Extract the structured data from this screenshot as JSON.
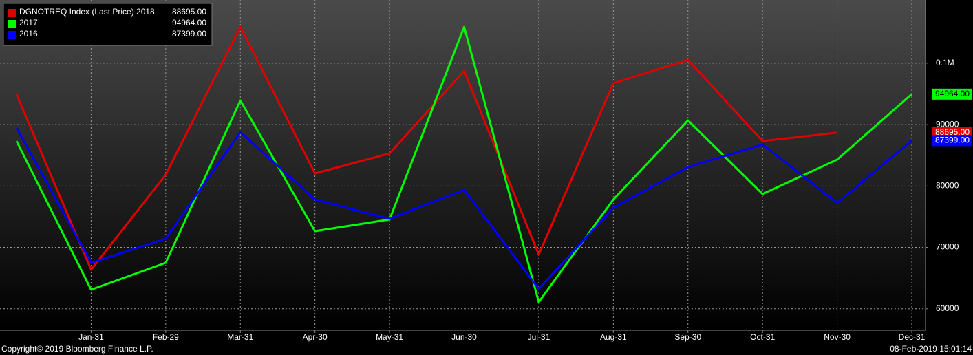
{
  "chart_data": {
    "type": "line",
    "categories": [
      null,
      "Jan-31",
      "Feb-29",
      "Mar-31",
      "Apr-30",
      "May-31",
      "Jun-30",
      "Jul-31",
      "Aug-31",
      "Sep-30",
      "Oct-31",
      "Nov-30",
      "Dec-31"
    ],
    "series": [
      {
        "name": "DGNOTREQ Index (Last Price) 2018",
        "color": "#e00000",
        "values": [
          94945,
          66365,
          81830,
          105930,
          82055,
          85305,
          98760,
          68830,
          96740,
          100550,
          87325,
          88695,
          null
        ],
        "value_labels": [
          null,
          null,
          null,
          null,
          null,
          null,
          null,
          null,
          null,
          null,
          null,
          "88695.00",
          null
        ]
      },
      {
        "name": "2017",
        "color": "#00ff00",
        "values": [
          87325,
          63110,
          67485,
          93940,
          72640,
          74550,
          105930,
          61100,
          77800,
          90690,
          78690,
          84300,
          94964
        ],
        "value_labels": [
          null,
          null,
          null,
          null,
          null,
          null,
          null,
          null,
          null,
          null,
          null,
          null,
          "94964.00"
        ]
      },
      {
        "name": "2016",
        "color": "#0000ff",
        "values": [
          89455,
          67485,
          71410,
          88780,
          77800,
          74660,
          79370,
          63230,
          76450,
          83070,
          86760,
          77240,
          87399
        ],
        "value_labels": [
          null,
          null,
          null,
          null,
          null,
          null,
          null,
          null,
          null,
          null,
          null,
          null,
          "87399.00"
        ]
      }
    ],
    "ylim": [
      56500,
      110300
    ],
    "yticks": [
      60000,
      70000,
      80000,
      90000,
      {
        "value": 100000,
        "label": "0.1M"
      }
    ],
    "grid": true,
    "legend": "upper left",
    "footer_left": "Copyright© 2019 Bloomberg Finance L.P.",
    "footer_right": "08-Feb-2019 15:01:14"
  }
}
